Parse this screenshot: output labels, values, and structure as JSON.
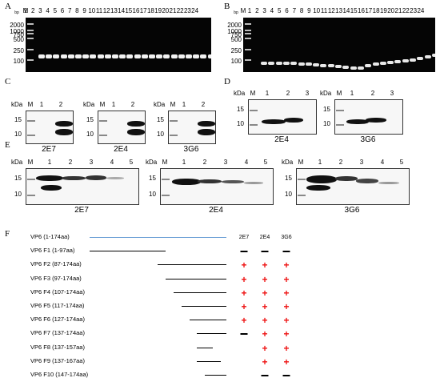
{
  "panels": {
    "A": {
      "letter": "A",
      "unit": "bp",
      "marker_label": "M",
      "lanes": [
        "1",
        "2",
        "3",
        "4",
        "5",
        "6",
        "7",
        "8",
        "9",
        "10",
        "11",
        "12",
        "13",
        "14",
        "15",
        "16",
        "17",
        "18",
        "19",
        "20",
        "21",
        "22",
        "23",
        "24"
      ],
      "ladder": [
        "2000",
        "1000",
        "750",
        "500",
        "250",
        "100"
      ]
    },
    "B": {
      "letter": "B",
      "unit": "bp",
      "marker_label": "M",
      "lanes": [
        "1",
        "2",
        "3",
        "4",
        "5",
        "6",
        "7",
        "8",
        "9",
        "10",
        "11",
        "12",
        "13",
        "14",
        "15",
        "16",
        "17",
        "18",
        "19",
        "20",
        "21",
        "22",
        "23",
        "24"
      ],
      "ladder": [
        "2000",
        "1000",
        "750",
        "500",
        "250",
        "100"
      ]
    },
    "C": {
      "letter": "C",
      "unit": "kDa",
      "marker_label": "M",
      "lanes": [
        "1",
        "2"
      ],
      "mw": [
        "15",
        "10"
      ],
      "blots": [
        {
          "name": "2E7"
        },
        {
          "name": "2E4"
        },
        {
          "name": "3G6"
        }
      ]
    },
    "D": {
      "letter": "D",
      "unit": "kDa",
      "marker_label": "M",
      "lanes": [
        "1",
        "2",
        "3"
      ],
      "mw": [
        "15",
        "10"
      ],
      "blots": [
        {
          "name": "2E4"
        },
        {
          "name": "3G6"
        }
      ]
    },
    "E": {
      "letter": "E",
      "unit": "kDa",
      "marker_label": "M",
      "lanes": [
        "1",
        "2",
        "3",
        "4",
        "5"
      ],
      "mw": [
        "15",
        "10"
      ],
      "blots": [
        {
          "name": "2E7"
        },
        {
          "name": "2E4"
        },
        {
          "name": "3G6"
        }
      ]
    },
    "F": {
      "letter": "F",
      "columns": [
        "2E7",
        "2E4",
        "3G6"
      ],
      "rows": [
        {
          "label": "VP6  (1-174aa)",
          "start": 1,
          "end": 174,
          "results": [
            "",
            "",
            ""
          ]
        },
        {
          "label": "VP6  F1  (1-97aa)",
          "start": 1,
          "end": 97,
          "results": [
            "-",
            "-",
            "-"
          ]
        },
        {
          "label": "VP6  F2  (87-174aa)",
          "start": 87,
          "end": 174,
          "results": [
            "+",
            "+",
            "+"
          ]
        },
        {
          "label": "VP6  F3  (97-174aa)",
          "start": 97,
          "end": 174,
          "results": [
            "+",
            "+",
            "+"
          ]
        },
        {
          "label": "VP6  F4  (107-174aa)",
          "start": 107,
          "end": 174,
          "results": [
            "+",
            "+",
            "+"
          ]
        },
        {
          "label": "VP6  F5  (117-174aa)",
          "start": 117,
          "end": 174,
          "results": [
            "+",
            "+",
            "+"
          ]
        },
        {
          "label": "VP6  F6  (127-174aa)",
          "start": 127,
          "end": 174,
          "results": [
            "+",
            "+",
            "+"
          ]
        },
        {
          "label": "VP6  F7  (137-174aa)",
          "start": 137,
          "end": 174,
          "results": [
            "-",
            "+",
            "+"
          ]
        },
        {
          "label": "VP6  F8  (137-157aa)",
          "start": 137,
          "end": 157,
          "results": [
            "",
            "+",
            "+"
          ]
        },
        {
          "label": "VP6  F9  (137-167aa)",
          "start": 137,
          "end": 167,
          "results": [
            "",
            "+",
            "+"
          ]
        },
        {
          "label": "VP6  F10  (147-174aa)",
          "start": 147,
          "end": 174,
          "results": [
            "",
            "-",
            "-"
          ]
        }
      ],
      "colors": {
        "full_length": "#6b9fd6",
        "fragment": "#000000",
        "positive": "#e11111",
        "negative": "#000000"
      }
    }
  }
}
